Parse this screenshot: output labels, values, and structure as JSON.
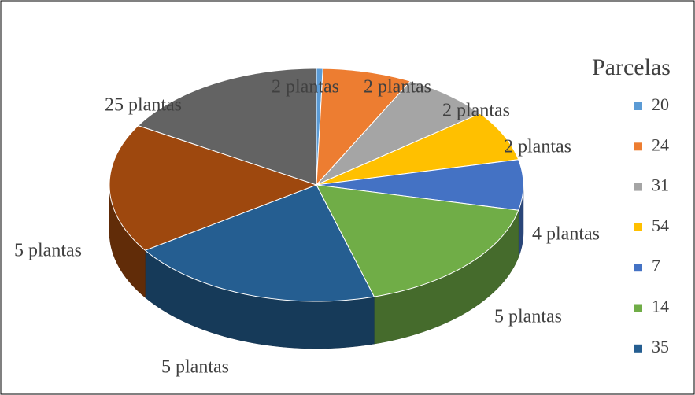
{
  "chart_data": {
    "type": "pie",
    "title": "Parcelas",
    "categories": [
      "20",
      "24",
      "31",
      "54",
      "7",
      "14",
      "35",
      null,
      null
    ],
    "values": [
      0.5,
      7,
      7,
      7,
      7,
      17,
      20,
      18,
      16.5
    ],
    "value_labels": [
      "2 plantas",
      "2 plantas",
      "2 plantas",
      "2 plantas",
      "4 plantas",
      "5 plantas",
      "5 plantas",
      "5 plantas",
      "25 plantas"
    ],
    "colors": [
      "#5b9bd5",
      "#ed7d31",
      "#a5a5a5",
      "#ffc000",
      "#4472c4",
      "#70ad47",
      "#255e91",
      "#9e480e",
      "#636363"
    ],
    "legend": "right",
    "style": "3d"
  }
}
